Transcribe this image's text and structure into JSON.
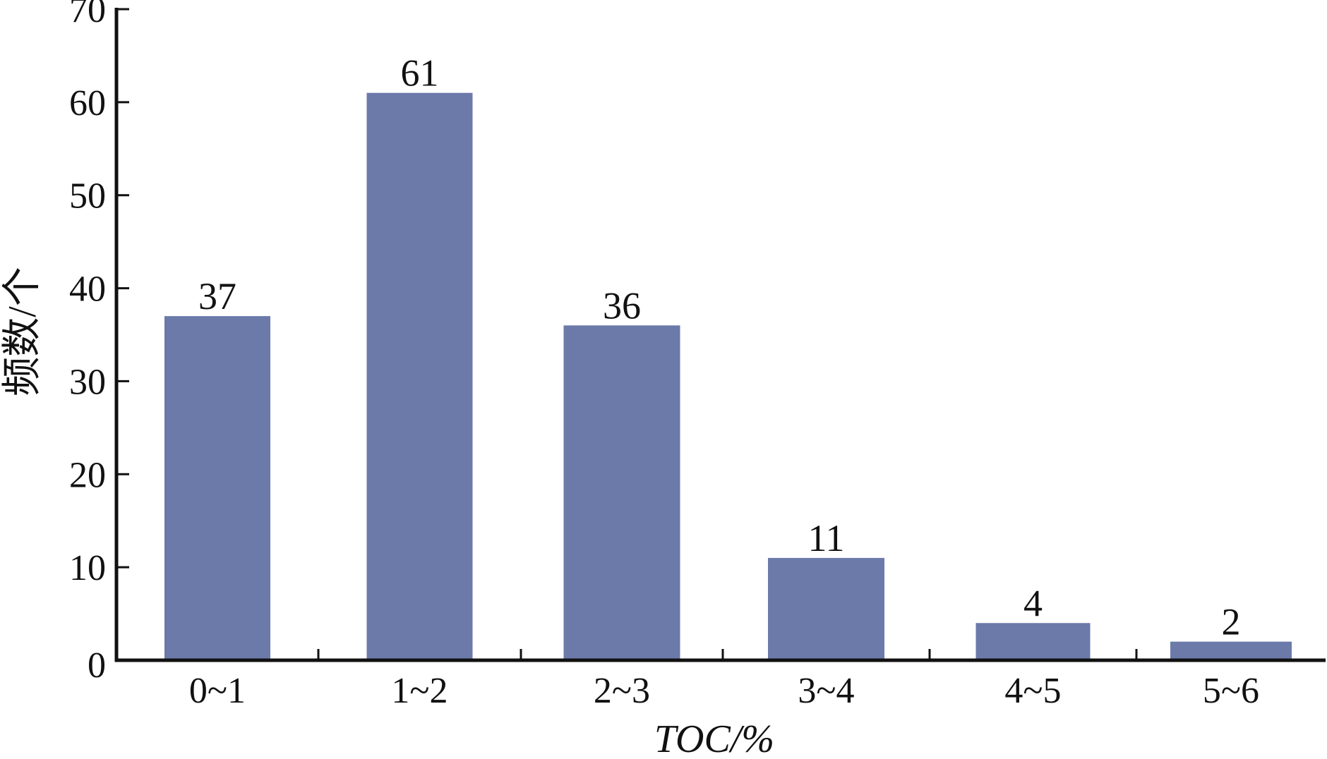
{
  "chart_data": {
    "type": "bar",
    "title": "",
    "xlabel": "TOC/%",
    "ylabel": "频数/个",
    "categories": [
      "0~1",
      "1~2",
      "2~3",
      "3~4",
      "4~5",
      "5~6"
    ],
    "values": [
      37,
      61,
      36,
      11,
      4,
      2
    ],
    "data_labels": [
      "37",
      "61",
      "36",
      "11",
      "4",
      "2"
    ],
    "ylim": [
      0,
      70
    ],
    "yticks": [
      0,
      10,
      20,
      30,
      40,
      50,
      60,
      70
    ],
    "ytick_labels": [
      "0",
      "10",
      "20",
      "30",
      "40",
      "50",
      "60",
      "70"
    ],
    "bar_color": "#6c7aaa",
    "axis_color": "#111111",
    "grid": false,
    "legend": "none"
  }
}
